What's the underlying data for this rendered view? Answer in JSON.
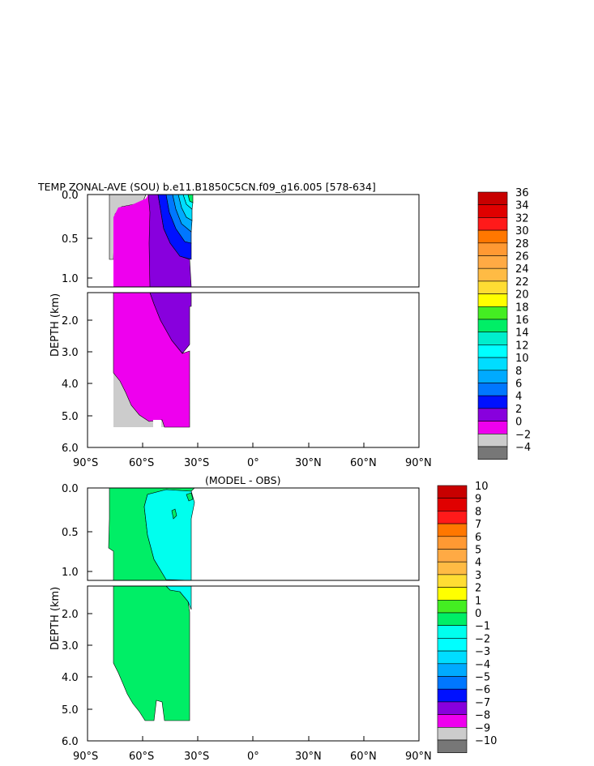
{
  "top_title": "TEMP ZONAL-AVE (SOU) b.e11.B1850C5CN.f09_g16.005 [578-634]",
  "bottom_title": "(MODEL - OBS)",
  "ylabel": "DEPTH (km)",
  "colors": {
    "c36": "#c80000",
    "c34": "#e00000",
    "c32": "#ff1a1a",
    "c30": "#ff7700",
    "c28": "#ff9933",
    "c26": "#ffaa44",
    "c24": "#ffbb44",
    "c22": "#ffdd33",
    "c20": "#ffff00",
    "c18": "#44ee22",
    "c16": "#00ee66",
    "c14": "#00eecc",
    "c12": "#00ffff",
    "c10": "#00ddff",
    "c8": "#00aaff",
    "c6": "#0077ff",
    "c4": "#0011ff",
    "c2": "#8800dd",
    "c0": "#ee00ee",
    "cm2": "#cccccc",
    "cm4": "#777777"
  },
  "chart_data": [
    {
      "type": "heatmap",
      "title": "TEMP ZONAL-AVE (SOU) b.e11.B1850C5CN.f09_g16.005 [578-634]",
      "xlabel": "",
      "ylabel": "DEPTH (km)",
      "x_ticks": [
        "90°S",
        "60°S",
        "30°S",
        "0°",
        "30°N",
        "60°N",
        "90°N"
      ],
      "y_ticks_upper": [
        "0.0",
        "0.5",
        "1.0"
      ],
      "y_ticks_lower": [
        "2.0",
        "3.0",
        "4.0",
        "5.0",
        "6.0"
      ],
      "xlim": [
        -90,
        90
      ],
      "ylim": [
        6.0,
        0.0
      ],
      "colorbar_labels": [
        "36",
        "34",
        "32",
        "30",
        "28",
        "26",
        "24",
        "22",
        "20",
        "18",
        "16",
        "14",
        "12",
        "10",
        "8",
        "6",
        "4",
        "2",
        "0",
        "−2",
        "−4"
      ],
      "colorbar_colors": [
        "#c80000",
        "#e00000",
        "#ff1a1a",
        "#ff7700",
        "#ff9933",
        "#ffaa44",
        "#ffbb44",
        "#ffdd33",
        "#ffff00",
        "#44ee22",
        "#00ee66",
        "#00eecc",
        "#00ffff",
        "#00ddff",
        "#00aaff",
        "#0077ff",
        "#0011ff",
        "#8800dd",
        "#ee00ee",
        "#cccccc",
        "#777777"
      ],
      "data_extent_lat": [
        -78,
        -34
      ],
      "regions": [
        {
          "band": "-2 to 0",
          "lat": [
            -78,
            -72
          ],
          "depth": [
            0.0,
            0.8
          ]
        },
        {
          "band": "0 to 2",
          "lat": [
            -77,
            -55
          ],
          "depth": [
            0.1,
            5.4
          ]
        },
        {
          "band": "2 to 4",
          "lat": [
            -56,
            -34
          ],
          "depth": [
            0.0,
            3.1
          ]
        },
        {
          "band": "4 to 10",
          "lat": [
            -50,
            -34
          ],
          "depth": [
            0.0,
            1.1
          ]
        },
        {
          "band": "10 to 18",
          "lat": [
            -36,
            -34
          ],
          "depth": [
            0.0,
            0.1
          ]
        }
      ]
    },
    {
      "type": "heatmap",
      "title": "(MODEL - OBS)",
      "xlabel": "",
      "ylabel": "DEPTH (km)",
      "x_ticks": [
        "90°S",
        "60°S",
        "30°S",
        "0°",
        "30°N",
        "60°N",
        "90°N"
      ],
      "y_ticks_upper": [
        "0.0",
        "0.5",
        "1.0"
      ],
      "y_ticks_lower": [
        "2.0",
        "3.0",
        "4.0",
        "5.0",
        "6.0"
      ],
      "xlim": [
        -90,
        90
      ],
      "ylim": [
        6.0,
        0.0
      ],
      "colorbar_labels": [
        "10",
        "9",
        "8",
        "7",
        "6",
        "5",
        "4",
        "3",
        "2",
        "1",
        "0",
        "−1",
        "−2",
        "−3",
        "−4",
        "−5",
        "−6",
        "−7",
        "−8",
        "−9",
        "−10"
      ],
      "colorbar_colors": [
        "#c80000",
        "#e00000",
        "#ff1a1a",
        "#ff7700",
        "#ff9933",
        "#ffaa44",
        "#ffbb44",
        "#ffdd33",
        "#ffff00",
        "#44ee22",
        "#00ee66",
        "#00ffee",
        "#00ffff",
        "#00ddff",
        "#00aaff",
        "#0077ff",
        "#0011ff",
        "#8800dd",
        "#ee00ee",
        "#cccccc",
        "#777777"
      ],
      "data_extent_lat": [
        -78,
        -34
      ],
      "regions": [
        {
          "band": "0 to 1",
          "lat": [
            -78,
            -55
          ],
          "depth": [
            0.0,
            5.4
          ]
        },
        {
          "band": "-1 to 0",
          "lat": [
            -58,
            -34
          ],
          "depth": [
            0.0,
            1.2
          ]
        }
      ]
    }
  ]
}
